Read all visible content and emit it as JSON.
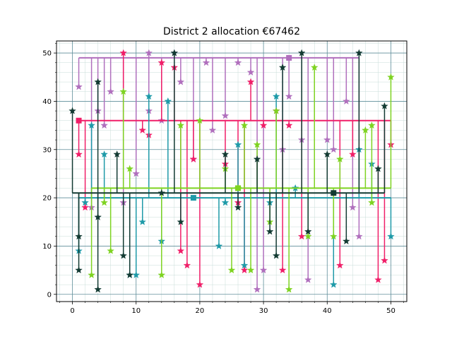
{
  "chart_data": {
    "type": "stem",
    "title": "District 2 allocation €67462",
    "xlabel": "",
    "ylabel": "",
    "xlim": [
      -2.5,
      52.5
    ],
    "ylim": [
      -1.5,
      52.5
    ],
    "xticks": [
      0,
      10,
      20,
      30,
      40,
      50
    ],
    "yticks": [
      0,
      10,
      20,
      30,
      40,
      50
    ],
    "grid": true,
    "minor_grid": true,
    "legend": "none",
    "marker": "star",
    "series": [
      {
        "color": "#b06fbd",
        "baseline": 49,
        "base_x": [
          1,
          45
        ],
        "base_marker_x": 34,
        "x": [
          1,
          3,
          4,
          5,
          6,
          8,
          10,
          12,
          12,
          14,
          16,
          17,
          19,
          21,
          22,
          24,
          26,
          28,
          29,
          30,
          33,
          34,
          36,
          37,
          40,
          41,
          43,
          44,
          45
        ],
        "y": [
          43,
          18,
          38,
          35,
          42,
          19,
          25,
          38,
          50,
          36,
          50,
          44,
          28,
          48,
          34,
          37,
          48,
          46,
          1,
          5,
          30,
          41,
          32,
          3,
          32,
          30,
          40,
          18,
          12
        ]
      },
      {
        "color": "#f01e68",
        "baseline": 36,
        "base_x": [
          1,
          50
        ],
        "base_marker_x": 1,
        "x": [
          1,
          2,
          8,
          11,
          12,
          14,
          16,
          17,
          18,
          19,
          20,
          24,
          26,
          27,
          28,
          30,
          32,
          33,
          34,
          36,
          42,
          44,
          48,
          49,
          50
        ],
        "y": [
          29,
          18,
          50,
          34,
          33,
          48,
          47,
          9,
          6,
          28,
          2,
          27,
          19,
          5,
          44,
          35,
          38,
          5,
          35,
          12,
          6,
          29,
          3,
          7,
          31
        ]
      },
      {
        "color": "#1e9aa8",
        "baseline": 20,
        "base_x": [
          1,
          50
        ],
        "base_marker_x": 19,
        "x": [
          1,
          2,
          3,
          5,
          9,
          10,
          11,
          12,
          14,
          15,
          23,
          24,
          26,
          27,
          31,
          32,
          35,
          41,
          45,
          47,
          50
        ],
        "y": [
          9,
          19,
          35,
          29,
          4,
          4,
          15,
          41,
          11,
          40,
          10,
          19,
          31,
          6,
          19,
          41,
          22,
          2,
          30,
          27,
          12
        ]
      },
      {
        "color": "#7ed321",
        "baseline": 22,
        "base_x": [
          3,
          50
        ],
        "base_marker_x": 26,
        "x": [
          3,
          5,
          6,
          8,
          9,
          14,
          17,
          20,
          24,
          25,
          26,
          27,
          28,
          29,
          31,
          32,
          34,
          37,
          38,
          41,
          42,
          46,
          47,
          47,
          50
        ],
        "y": [
          4,
          19,
          9,
          42,
          26,
          4,
          35,
          36,
          26,
          5,
          22,
          35,
          5,
          31,
          15,
          38,
          1,
          12,
          47,
          12,
          28,
          34,
          35,
          19,
          45
        ]
      },
      {
        "color": "#123a32",
        "baseline": 21,
        "base_x": [
          0,
          49
        ],
        "base_marker_x": 41,
        "x": [
          0,
          1,
          1,
          4,
          4,
          4,
          7,
          8,
          9,
          14,
          16,
          17,
          24,
          26,
          29,
          31,
          32,
          33,
          36,
          37,
          40,
          43,
          45,
          48,
          49
        ],
        "y": [
          38,
          12,
          5,
          44,
          16,
          1,
          29,
          8,
          4,
          21,
          50,
          15,
          29,
          18,
          28,
          13,
          8,
          47,
          50,
          13,
          29,
          11,
          50,
          26,
          39
        ]
      }
    ]
  }
}
